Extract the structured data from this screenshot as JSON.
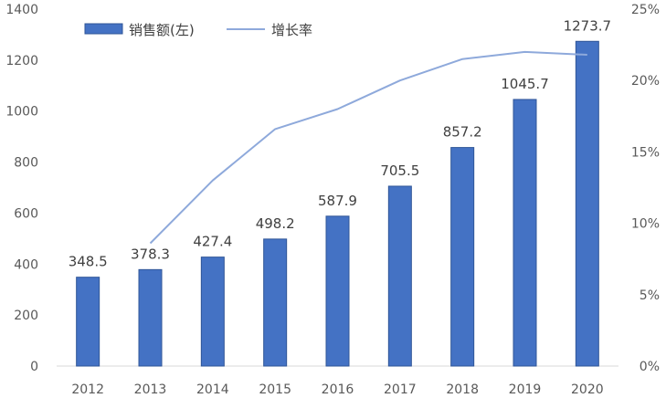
{
  "chart_data": {
    "type": "bar",
    "categories": [
      "2012",
      "2013",
      "2014",
      "2015",
      "2016",
      "2017",
      "2018",
      "2019",
      "2020"
    ],
    "series": [
      {
        "name": "销售额(左)",
        "type": "bar",
        "axis": "left",
        "values": [
          348.5,
          378.3,
          427.4,
          498.2,
          587.9,
          705.5,
          857.2,
          1045.7,
          1273.7
        ],
        "color": "#4472C4"
      },
      {
        "name": "增长率",
        "type": "line",
        "axis": "right",
        "values": [
          null,
          8.6,
          13.0,
          16.6,
          18.0,
          20.0,
          21.5,
          22.0,
          21.8
        ],
        "color": "#8EA9DB"
      }
    ],
    "y_left": {
      "min": 0,
      "max": 1400,
      "ticks": [
        "0",
        "200",
        "400",
        "600",
        "800",
        "1000",
        "1200",
        "1400"
      ]
    },
    "y_right": {
      "min": 0,
      "max": 25,
      "ticks": [
        "0%",
        "5%",
        "10%",
        "15%",
        "20%",
        "25%"
      ]
    },
    "data_labels": [
      "348.5",
      "378.3",
      "427.4",
      "498.2",
      "587.9",
      "705.5",
      "857.2",
      "1045.7",
      "1273.7"
    ],
    "legend_position": "top-left",
    "grid": false
  }
}
